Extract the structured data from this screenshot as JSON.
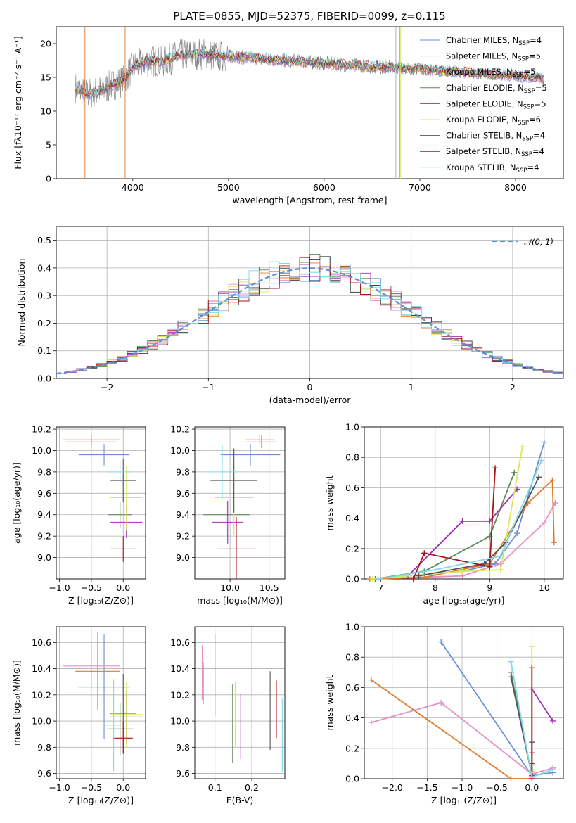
{
  "figure": {
    "title": "PLATE=0855, MJD=52375, FIBERID=0099, z=0.115",
    "colors": [
      "#6a8fd8",
      "#e88fc1",
      "#e07a2b",
      "#5a8a5a",
      "#9b2fae",
      "#d8e85a",
      "#555555",
      "#a5151c",
      "#7ed8e8"
    ]
  },
  "chart_data": [
    {
      "id": "spectrum",
      "type": "line",
      "xlabel": "wavelength [Angstrom, rest frame]",
      "ylabel": "Flux [fλ10⁻¹⁷ erg cm⁻² s⁻¹ A⁻¹]",
      "xlim": [
        3200,
        8500
      ],
      "ylim": [
        0,
        22.5
      ],
      "xticks": [
        4000,
        5000,
        6000,
        7000,
        8000
      ],
      "yticks": [
        0,
        5,
        10,
        15,
        20
      ],
      "legend_position": "top-right",
      "grid": false,
      "legend": [
        "Chabrier MILES, N_SSP=4",
        "Salpeter MILES, N_SSP=5",
        "Kroupa MILES, N_SSP=5",
        "Chabrier ELODIE, N_SSP=5",
        "Salpeter ELODIE, N_SSP=5",
        "Kroupa ELODIE, N_SSP=6",
        "Chabrier STELIB, N_SSP=4",
        "Salpeter STELIB, N_SSP=4",
        "Kroupa STELIB, N_SSP=4"
      ],
      "continuum": {
        "x": [
          3400,
          3500,
          3600,
          3700,
          3800,
          3900,
          4000,
          4100,
          4200,
          4300,
          4400,
          4500,
          4700,
          4900,
          5100,
          5300,
          5500,
          5700,
          5900,
          6100,
          6300,
          6500,
          6700,
          6900,
          7000,
          7200,
          7400,
          7600,
          7800,
          8000,
          8200,
          8300
        ],
        "y": [
          13.5,
          12.5,
          12.8,
          13.2,
          14.0,
          14.5,
          16.5,
          17.2,
          17.5,
          17.2,
          17.8,
          18.3,
          18.5,
          18.2,
          18.0,
          17.8,
          17.6,
          17.4,
          17.2,
          17.0,
          16.8,
          16.6,
          16.5,
          16.3,
          16.2,
          16.0,
          15.8,
          15.6,
          15.4,
          15.2,
          15.0,
          14.8
        ]
      }
    },
    {
      "id": "residuals",
      "type": "line",
      "xlabel": "(data-model)/error",
      "ylabel": "Normed distribution",
      "xlim": [
        -2.5,
        2.5
      ],
      "ylim": [
        0,
        0.55
      ],
      "xticks": [
        -2,
        -1,
        0,
        1,
        2
      ],
      "yticks": [
        0.0,
        0.1,
        0.2,
        0.3,
        0.4,
        0.5
      ],
      "grid": true,
      "legend_position": "top-right",
      "legend": [
        "𝒩(0, 1)"
      ]
    },
    {
      "id": "age_vs_Z",
      "type": "scatter",
      "xlabel": "Z [log₁₀(Z/Z⊙)]",
      "ylabel": "age  [log₁₀(age/yr)]",
      "xlim": [
        -1.05,
        0.35
      ],
      "ylim": [
        8.8,
        10.22
      ],
      "xticks": [
        -1.0,
        -0.5,
        0.0
      ],
      "yticks": [
        9.0,
        9.2,
        9.4,
        9.6,
        9.8,
        10.0,
        10.2
      ],
      "grid": true,
      "points": [
        {
          "x": -0.3,
          "xerr": 0.4,
          "y": 9.96,
          "yerr": 0.1
        },
        {
          "x": -0.5,
          "xerr": 0.4,
          "y": 10.08,
          "yerr": 0.06
        },
        {
          "x": -0.5,
          "xerr": 0.45,
          "y": 10.1,
          "yerr": 0.05
        },
        {
          "x": -0.05,
          "xerr": 0.18,
          "y": 9.4,
          "yerr": 0.12
        },
        {
          "x": 0.05,
          "xerr": 0.25,
          "y": 9.33,
          "yerr": 0.15
        },
        {
          "x": 0.05,
          "xerr": 0.25,
          "y": 9.56,
          "yerr": 0.3
        },
        {
          "x": 0.0,
          "xerr": 0.2,
          "y": 9.72,
          "yerr": 0.2
        },
        {
          "x": 0.0,
          "xerr": 0.2,
          "y": 9.08,
          "yerr": 0.12
        },
        {
          "x": -0.05,
          "xerr": 0.18,
          "y": 9.8,
          "yerr": 0.1
        }
      ]
    },
    {
      "id": "age_vs_mass",
      "type": "scatter",
      "xlabel": "mass [log₁₀(M/M⊙)]",
      "ylabel": "",
      "xlim": [
        9.55,
        10.7
      ],
      "ylim": [
        8.8,
        10.22
      ],
      "xticks": [
        10.0,
        10.5
      ],
      "yticks": [
        9.0,
        9.2,
        9.4,
        9.6,
        9.8,
        10.0,
        10.2
      ],
      "grid": true,
      "points": [
        {
          "x": 10.26,
          "xerr": 0.38,
          "y": 9.96,
          "yerr": 0.1
        },
        {
          "x": 10.4,
          "xerr": 0.2,
          "y": 10.08,
          "yerr": 0.06
        },
        {
          "x": 10.38,
          "xerr": 0.18,
          "y": 10.1,
          "yerr": 0.05
        },
        {
          "x": 9.95,
          "xerr": 0.3,
          "y": 9.4,
          "yerr": 0.2
        },
        {
          "x": 9.97,
          "xerr": 0.2,
          "y": 9.33,
          "yerr": 0.2
        },
        {
          "x": 10.05,
          "xerr": 0.25,
          "y": 9.56,
          "yerr": 0.35
        },
        {
          "x": 10.05,
          "xerr": 0.3,
          "y": 9.72,
          "yerr": 0.3
        },
        {
          "x": 10.08,
          "xerr": 0.25,
          "y": 9.08,
          "yerr": 0.3
        },
        {
          "x": 9.9,
          "xerr": 0.2,
          "y": 9.8,
          "yerr": 0.25
        }
      ]
    },
    {
      "id": "massweight_vs_age",
      "type": "line",
      "xlabel": "age  [log₁₀(age/yr)]",
      "ylabel": "mass weight",
      "xlim": [
        6.7,
        10.35
      ],
      "ylim": [
        0,
        1.0
      ],
      "xticks": [
        7,
        8,
        9,
        10
      ],
      "yticks": [
        0.0,
        0.2,
        0.4,
        0.6,
        0.8,
        1.0
      ],
      "grid": true,
      "series": [
        {
          "x": [
            6.85,
            7.5,
            8.5,
            9.1,
            9.5,
            10.0
          ],
          "y": [
            0.0,
            0.02,
            0.05,
            0.1,
            0.3,
            0.9
          ]
        },
        {
          "x": [
            6.9,
            8.5,
            9.2,
            10.0,
            10.2
          ],
          "y": [
            0.0,
            0.02,
            0.1,
            0.37,
            0.5
          ]
        },
        {
          "x": [
            6.8,
            7.8,
            9.0,
            9.7,
            10.15,
            10.18
          ],
          "y": [
            0.0,
            0.01,
            0.1,
            0.5,
            0.65,
            0.24
          ]
        },
        {
          "x": [
            6.9,
            7.8,
            9.0,
            9.45
          ],
          "y": [
            0.0,
            0.05,
            0.28,
            0.7
          ]
        },
        {
          "x": [
            7.5,
            8.5,
            9.0,
            9.5
          ],
          "y": [
            0.02,
            0.38,
            0.38,
            0.59
          ]
        },
        {
          "x": [
            6.85,
            8.5,
            9.2,
            9.6
          ],
          "y": [
            0.0,
            0.05,
            0.06,
            0.87
          ]
        },
        {
          "x": [
            7.7,
            8.9,
            9.3,
            9.9
          ],
          "y": [
            0.02,
            0.1,
            0.24,
            0.67
          ]
        },
        {
          "x": [
            7.6,
            7.8,
            9.0,
            9.1
          ],
          "y": [
            0.0,
            0.17,
            0.08,
            0.73
          ]
        },
        {
          "x": [
            6.95,
            8.0,
            9.2,
            9.95
          ],
          "y": [
            0.0,
            0.06,
            0.15,
            0.78
          ]
        }
      ]
    },
    {
      "id": "mass_vs_Z",
      "type": "scatter",
      "xlabel": "Z [log₁₀(Z/Z⊙)]",
      "ylabel": "mass [log₁₀(M/M⊙)]",
      "xlim": [
        -1.05,
        0.35
      ],
      "ylim": [
        9.56,
        10.72
      ],
      "xticks": [
        -1.0,
        -0.5,
        0.0
      ],
      "yticks": [
        9.6,
        9.8,
        10.0,
        10.2,
        10.4,
        10.6
      ],
      "grid": true,
      "points": [
        {
          "x": -0.3,
          "xerr": 0.4,
          "y": 10.26,
          "yerr": 0.4
        },
        {
          "x": -0.5,
          "xerr": 0.45,
          "y": 10.42,
          "yerr": 0.16
        },
        {
          "x": -0.4,
          "xerr": 0.35,
          "y": 10.38,
          "yerr": 0.3
        },
        {
          "x": -0.05,
          "xerr": 0.2,
          "y": 9.94,
          "yerr": 0.2
        },
        {
          "x": 0.05,
          "xerr": 0.25,
          "y": 10.03,
          "yerr": 0.2
        },
        {
          "x": 0.05,
          "xerr": 0.25,
          "y": 10.05,
          "yerr": 0.25
        },
        {
          "x": 0.0,
          "xerr": 0.2,
          "y": 10.06,
          "yerr": 0.3
        },
        {
          "x": 0.0,
          "xerr": 0.15,
          "y": 9.87,
          "yerr": 0.12
        },
        {
          "x": -0.15,
          "xerr": 0.15,
          "y": 9.97,
          "yerr": 0.35
        }
      ]
    },
    {
      "id": "mass_vs_ebv",
      "type": "scatter",
      "xlabel": "E(B-V)",
      "ylabel": "",
      "xlim": [
        0.045,
        0.29
      ],
      "ylim": [
        9.56,
        10.72
      ],
      "xticks": [
        0.1,
        0.2
      ],
      "yticks": [
        9.6,
        9.8,
        10.0,
        10.2,
        10.4,
        10.6
      ],
      "grid": true,
      "points": [
        {
          "x": 0.1,
          "y": 10.35,
          "yerr": 0.31
        },
        {
          "x": 0.065,
          "y": 10.37,
          "yerr": 0.21
        },
        {
          "x": 0.068,
          "y": 10.29,
          "yerr": 0.16
        },
        {
          "x": 0.148,
          "y": 9.98,
          "yerr": 0.3
        },
        {
          "x": 0.17,
          "y": 9.96,
          "yerr": 0.25
        },
        {
          "x": 0.155,
          "y": 10.05,
          "yerr": 0.25
        },
        {
          "x": 0.25,
          "y": 10.08,
          "yerr": 0.3
        },
        {
          "x": 0.267,
          "y": 10.09,
          "yerr": 0.22
        },
        {
          "x": 0.283,
          "y": 9.89,
          "yerr": 0.28
        }
      ]
    },
    {
      "id": "massweight_vs_Z",
      "type": "line",
      "xlabel": "Z [log₁₀(Z/Z⊙)]",
      "ylabel": "mass weight",
      "xlim": [
        -2.4,
        0.45
      ],
      "ylim": [
        0,
        1.0
      ],
      "xticks": [
        -2.0,
        -1.5,
        -1.0,
        -0.5,
        0.0
      ],
      "yticks": [
        0.0,
        0.2,
        0.4,
        0.6,
        0.8,
        1.0
      ],
      "grid": true,
      "series": [
        {
          "x": [
            -1.3,
            0.0,
            0.3
          ],
          "y": [
            0.9,
            0.02,
            0.04
          ]
        },
        {
          "x": [
            -2.3,
            -1.3,
            0.0,
            0.3
          ],
          "y": [
            0.37,
            0.5,
            0.03,
            0.07
          ]
        },
        {
          "x": [
            -2.3,
            -0.3,
            0.0,
            0.0
          ],
          "y": [
            0.65,
            0.0,
            0.0,
            0.1
          ]
        },
        {
          "x": [
            -0.3,
            0.0,
            0.0
          ],
          "y": [
            0.7,
            0.02,
            0.05
          ]
        },
        {
          "x": [
            0.0,
            0.0,
            0.3
          ],
          "y": [
            0.02,
            0.59,
            0.38
          ]
        },
        {
          "x": [
            0.0,
            0.0,
            0.0
          ],
          "y": [
            0.87,
            0.05,
            0.06
          ]
        },
        {
          "x": [
            -0.3,
            0.0,
            0.0,
            0.0
          ],
          "y": [
            0.67,
            0.02,
            0.24,
            0.1
          ]
        },
        {
          "x": [
            0.0,
            0.0,
            0.0
          ],
          "y": [
            0.73,
            0.0,
            0.17
          ]
        },
        {
          "x": [
            -0.3,
            0.0,
            0.3
          ],
          "y": [
            0.77,
            0.01,
            0.06
          ]
        }
      ]
    }
  ]
}
